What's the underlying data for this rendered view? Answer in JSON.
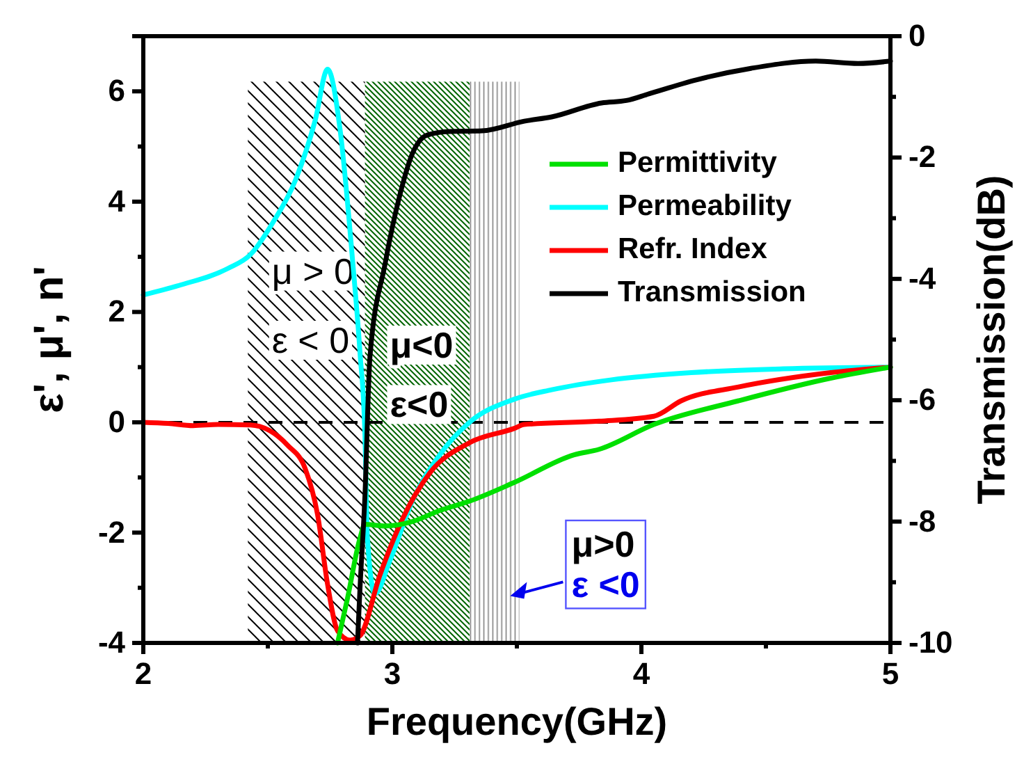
{
  "chart_data": {
    "type": "line",
    "xlabel": "Frequency(GHz)",
    "ylabel": "ε', μ', n'",
    "y2label": "Transmission(dB)",
    "xlim": [
      2,
      5
    ],
    "xticks": [
      2,
      {
        "value": 2.5,
        "label": null
      },
      3,
      {
        "value": 3.5,
        "label": null
      },
      4,
      {
        "value": 4.5,
        "label": null
      },
      5
    ],
    "ylim": [
      -4,
      7
    ],
    "yticks": [
      -4,
      {
        "value": -3,
        "label": null
      },
      -2,
      {
        "value": -1,
        "label": null
      },
      0,
      {
        "value": 1,
        "label": null
      },
      2,
      {
        "value": 3,
        "label": null
      },
      4,
      {
        "value": 5,
        "label": null
      },
      6
    ],
    "y2lim": [
      -10,
      0
    ],
    "y2ticks": [
      -10,
      {
        "value": -9,
        "label": null
      },
      -8,
      {
        "value": -7,
        "label": null
      },
      -6,
      {
        "value": -5,
        "label": null
      },
      -4,
      {
        "value": -3,
        "label": null
      },
      -2,
      {
        "value": -1,
        "label": null
      },
      0
    ],
    "legend": "top right",
    "line_style": "solid",
    "series": [
      {
        "name": "Permittivity",
        "color": "#00e000",
        "x": [
          2.78,
          2.82,
          2.87,
          2.89,
          2.97,
          3.08,
          3.19,
          3.31,
          3.49,
          3.73,
          3.83,
          4.05,
          4.39,
          4.76,
          5.0
        ],
        "values": [
          -4.0,
          -3.19,
          -2.1,
          -1.85,
          -1.88,
          -1.8,
          -1.6,
          -1.43,
          -1.09,
          -0.59,
          -0.49,
          -0.04,
          0.39,
          0.8,
          1.0
        ]
      },
      {
        "name": "Permeability",
        "color": "#00ffff",
        "x": [
          2.0,
          2.15,
          2.34,
          2.43,
          2.52,
          2.61,
          2.69,
          2.74,
          2.79,
          2.84,
          2.87,
          2.89,
          2.9,
          2.93,
          2.99,
          3.08,
          3.19,
          3.31,
          3.49,
          3.64,
          3.88,
          4.2,
          4.57,
          5.0
        ],
        "values": [
          2.31,
          2.49,
          2.79,
          3.04,
          3.62,
          4.38,
          5.47,
          6.4,
          5.31,
          2.95,
          1.27,
          -0.24,
          -2.1,
          -3.11,
          -2.51,
          -1.43,
          -0.59,
          0.0,
          0.42,
          0.59,
          0.77,
          0.9,
          0.97,
          1.0
        ]
      },
      {
        "name": "Refr. Index",
        "color": "#ff0000",
        "x": [
          2.0,
          2.1,
          2.2,
          2.3,
          2.43,
          2.58,
          2.65,
          2.7,
          2.74,
          2.78,
          2.83,
          2.87,
          2.95,
          3.04,
          3.15,
          3.31,
          3.49,
          3.53,
          3.83,
          4.05,
          4.16,
          4.39,
          4.76,
          5.0
        ],
        "values": [
          0.0,
          -0.02,
          -0.06,
          -0.04,
          -0.05,
          -0.42,
          -0.84,
          -1.68,
          -2.94,
          -3.78,
          -3.95,
          -3.87,
          -2.77,
          -1.76,
          -0.92,
          -0.37,
          -0.11,
          -0.04,
          0.02,
          0.11,
          0.39,
          0.64,
          0.9,
          1.0
        ]
      },
      {
        "name": "Transmission",
        "color": "#000000",
        "axis": "y2",
        "x": [
          2.86,
          2.87,
          2.89,
          2.91,
          2.97,
          3.03,
          3.08,
          3.14,
          3.23,
          3.36,
          3.53,
          3.64,
          3.84,
          3.94,
          4.03,
          4.22,
          4.44,
          4.7,
          4.87,
          5.0
        ],
        "values": [
          -10.0,
          -9.11,
          -7.57,
          -5.29,
          -3.77,
          -2.62,
          -1.94,
          -1.63,
          -1.57,
          -1.56,
          -1.4,
          -1.33,
          -1.1,
          -1.06,
          -0.95,
          -0.72,
          -0.53,
          -0.41,
          -0.45,
          -0.41
        ]
      }
    ],
    "ref_lines": [
      {
        "axis": "y",
        "value": 0,
        "color": "#000000",
        "line_style": "dashed"
      }
    ],
    "bands": [
      {
        "axis": "x",
        "from": 2.42,
        "to": 2.89,
        "color": "#000000"
      },
      {
        "axis": "x",
        "from": 2.89,
        "to": 3.31,
        "color": "#006400"
      },
      {
        "axis": "x",
        "from": 3.31,
        "to": 3.51,
        "color": "#808080"
      }
    ],
    "annotations": [
      "μ > 0",
      "ε < 0",
      "μ<0",
      "ε<0",
      "μ>0",
      "ε <0"
    ]
  }
}
